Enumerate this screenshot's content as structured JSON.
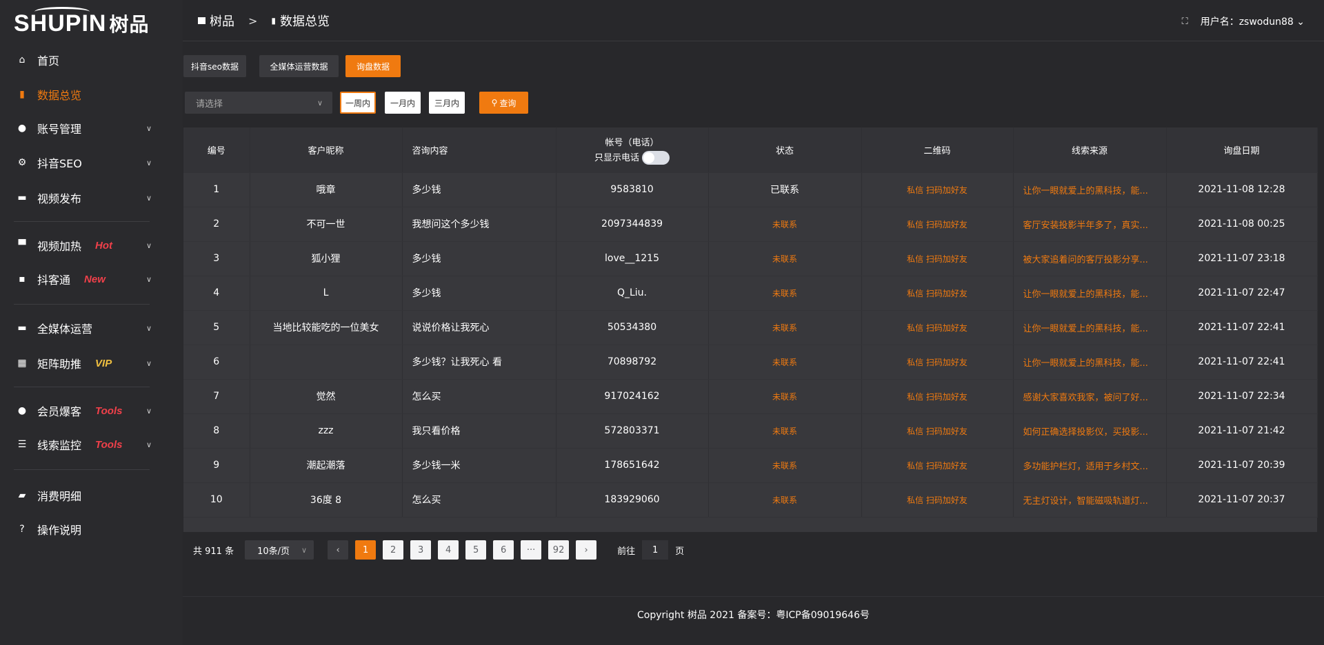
{
  "brand": {
    "logo_text": "SHUPIN",
    "logo_cn": "树品"
  },
  "colors": {
    "accent": "#f07a10",
    "hot": "#f0404a",
    "vip": "#f0c040"
  },
  "sidebar": {
    "items": [
      {
        "label": "首页",
        "icon": "home-icon"
      },
      {
        "label": "数据总览",
        "icon": "bar-chart-icon",
        "active": true
      },
      {
        "label": "账号管理",
        "icon": "user-icon",
        "chevron": true
      },
      {
        "label": "抖音SEO",
        "icon": "gear-icon",
        "chevron": true
      },
      {
        "label": "视频发布",
        "icon": "video-icon",
        "chevron": true
      },
      {
        "label": "视频加热",
        "icon": "flame-board-icon",
        "badge": "Hot",
        "chevron": true
      },
      {
        "label": "抖客通",
        "icon": "chat-icon",
        "badge": "New",
        "chevron": true
      },
      {
        "label": "全媒体运营",
        "icon": "monitor-icon",
        "chevron": true
      },
      {
        "label": "矩阵助推",
        "icon": "grid-icon",
        "badge": "VIP",
        "chevron": true
      },
      {
        "label": "会员爆客",
        "icon": "member-icon",
        "badge": "Tools",
        "chevron": true
      },
      {
        "label": "线索监控",
        "icon": "sliders-icon",
        "badge": "Tools",
        "chevron": true
      },
      {
        "label": "消费明细",
        "icon": "wallet-icon"
      },
      {
        "label": "操作说明",
        "icon": "help-icon"
      }
    ]
  },
  "header": {
    "breadcrumb": [
      "树品",
      "数据总览"
    ],
    "separator": ">",
    "username": "用户名：zswodun88"
  },
  "tabs": [
    "抖音seo数据",
    "全媒体运营数据",
    "询盘数据"
  ],
  "filter": {
    "placeholder": "请选择",
    "ranges": [
      "一周内",
      "一月内",
      "三月内"
    ],
    "query": "查询"
  },
  "table": {
    "headers": [
      "编号",
      "客户昵称",
      "咨询内容",
      "帐号（电话）",
      "状态",
      "二维码",
      "线索来源",
      "询盘日期"
    ],
    "phone_only_label": "只显示电话",
    "rows": [
      [
        "1",
        "哦章",
        "多少钱",
        "9583810",
        "已联系",
        "私信 扫码加好友",
        "让你一眼就爱上的黑科技，能...",
        "2021-11-08 12:28"
      ],
      [
        "2",
        "不可一世",
        "我想问这个多少钱",
        "2097344839",
        "未联系",
        "私信 扫码加好友",
        "客厅安装投影半年多了，真实...",
        "2021-11-08 00:25"
      ],
      [
        "3",
        "狐小狸",
        "多少钱",
        "love__1215",
        "未联系",
        "私信 扫码加好友",
        "被大家追着问的客厅投影分享...",
        "2021-11-07 23:18"
      ],
      [
        "4",
        "L",
        "多少钱",
        "Q_Liu.",
        "未联系",
        "私信 扫码加好友",
        "让你一眼就爱上的黑科技，能...",
        "2021-11-07 22:47"
      ],
      [
        "5",
        "当地比较能吃的一位美女",
        "说说价格让我死心",
        "50534380",
        "未联系",
        "私信 扫码加好友",
        "让你一眼就爱上的黑科技，能...",
        "2021-11-07 22:41"
      ],
      [
        "6",
        "",
        "多少钱？让我死心 看",
        "70898792",
        "未联系",
        "私信 扫码加好友",
        "让你一眼就爱上的黑科技，能...",
        "2021-11-07 22:41"
      ],
      [
        "7",
        "觉然",
        "怎么买",
        "917024162",
        "未联系",
        "私信 扫码加好友",
        "感谢大家喜欢我家，被问了好...",
        "2021-11-07 22:34"
      ],
      [
        "8",
        "zzz",
        "我只看价格",
        "572803371",
        "未联系",
        "私信 扫码加好友",
        "如何正确选择投影仪，买投影...",
        "2021-11-07 21:42"
      ],
      [
        "9",
        "潮起潮落",
        "多少钱一米",
        "178651642",
        "未联系",
        "私信 扫码加好友",
        "多功能护栏灯，适用于乡村文...",
        "2021-11-07 20:39"
      ],
      [
        "10",
        "36度 8",
        "怎么买",
        "183929060",
        "未联系",
        "私信 扫码加好友",
        "无主灯设计，智能磁吸轨道灯...",
        "2021-11-07 20:37"
      ]
    ]
  },
  "pagination": {
    "total": "共 911 条",
    "page_size": "10条/页",
    "pages": [
      "1",
      "2",
      "3",
      "4",
      "5",
      "6",
      "···",
      "92"
    ],
    "current": "1",
    "goto_label": "前往",
    "goto_value": "1",
    "goto_suffix": "页"
  },
  "footer": {
    "copyright": "Copyright 树品 2021 备案号：粤ICP备09019646号"
  }
}
